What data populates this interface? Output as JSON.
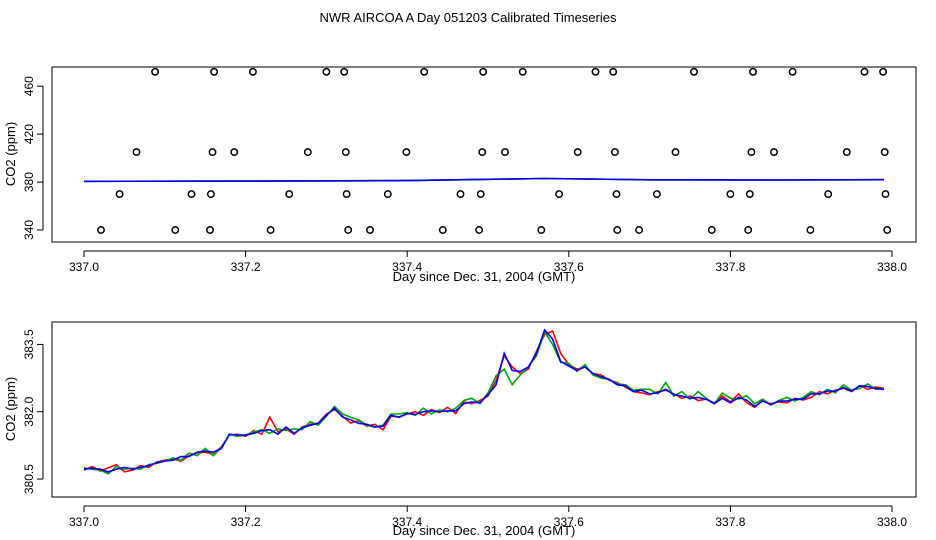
{
  "title": "NWR AIRCOA A  Day 051203  Calibrated Timeseries",
  "chart_data": [
    {
      "type": "line",
      "panel": "top",
      "xlabel": "Day since Dec. 31, 2004 (GMT)",
      "ylabel": "CO2 (ppm)",
      "xlim": [
        337.0,
        338.0
      ],
      "ylim": [
        330,
        476
      ],
      "x_ticks": [
        "337.0",
        "337.2",
        "337.4",
        "337.6",
        "337.8",
        "338.0"
      ],
      "y_ticks": [
        "340",
        "380",
        "420",
        "460"
      ],
      "series": [
        {
          "color": "#ff0000",
          "x": [
            337.0,
            337.2,
            337.4,
            337.5,
            337.57,
            337.7,
            337.85,
            337.99
          ],
          "y": [
            380.6,
            380.8,
            381.2,
            382.3,
            383.0,
            381.9,
            381.7,
            382.0
          ]
        },
        {
          "color": "#00aa00",
          "x": [
            337.0,
            337.2,
            337.4,
            337.5,
            337.57,
            337.7,
            337.85,
            337.99
          ],
          "y": [
            380.6,
            380.8,
            381.2,
            382.3,
            383.0,
            381.9,
            381.7,
            382.0
          ]
        },
        {
          "color": "#0000ff",
          "x": [
            337.0,
            337.2,
            337.4,
            337.5,
            337.57,
            337.7,
            337.85,
            337.99
          ],
          "y": [
            380.6,
            380.8,
            381.2,
            382.3,
            383.0,
            381.9,
            381.7,
            382.0
          ]
        }
      ],
      "points": [
        {
          "x": 337.021,
          "y": 340
        },
        {
          "x": 337.044,
          "y": 370
        },
        {
          "x": 337.065,
          "y": 405
        },
        {
          "x": 337.088,
          "y": 472
        },
        {
          "x": 337.113,
          "y": 340
        },
        {
          "x": 337.133,
          "y": 370
        },
        {
          "x": 337.156,
          "y": 340
        },
        {
          "x": 337.157,
          "y": 370
        },
        {
          "x": 337.159,
          "y": 405
        },
        {
          "x": 337.161,
          "y": 472
        },
        {
          "x": 337.186,
          "y": 405
        },
        {
          "x": 337.209,
          "y": 472
        },
        {
          "x": 337.231,
          "y": 340
        },
        {
          "x": 337.254,
          "y": 370
        },
        {
          "x": 337.277,
          "y": 405
        },
        {
          "x": 337.3,
          "y": 472
        },
        {
          "x": 337.322,
          "y": 472
        },
        {
          "x": 337.324,
          "y": 405
        },
        {
          "x": 337.325,
          "y": 370
        },
        {
          "x": 337.327,
          "y": 340
        },
        {
          "x": 337.354,
          "y": 340
        },
        {
          "x": 337.376,
          "y": 370
        },
        {
          "x": 337.399,
          "y": 405
        },
        {
          "x": 337.421,
          "y": 472
        },
        {
          "x": 337.444,
          "y": 340
        },
        {
          "x": 337.466,
          "y": 370
        },
        {
          "x": 337.489,
          "y": 340
        },
        {
          "x": 337.491,
          "y": 370
        },
        {
          "x": 337.493,
          "y": 405
        },
        {
          "x": 337.494,
          "y": 472
        },
        {
          "x": 337.521,
          "y": 405
        },
        {
          "x": 337.543,
          "y": 472
        },
        {
          "x": 337.566,
          "y": 340
        },
        {
          "x": 337.588,
          "y": 370
        },
        {
          "x": 337.611,
          "y": 405
        },
        {
          "x": 337.633,
          "y": 472
        },
        {
          "x": 337.655,
          "y": 472
        },
        {
          "x": 337.657,
          "y": 405
        },
        {
          "x": 337.659,
          "y": 370
        },
        {
          "x": 337.66,
          "y": 340
        },
        {
          "x": 337.687,
          "y": 340
        },
        {
          "x": 337.709,
          "y": 370
        },
        {
          "x": 337.732,
          "y": 405
        },
        {
          "x": 337.755,
          "y": 472
        },
        {
          "x": 337.777,
          "y": 340
        },
        {
          "x": 337.8,
          "y": 370
        },
        {
          "x": 337.822,
          "y": 340
        },
        {
          "x": 337.824,
          "y": 370
        },
        {
          "x": 337.826,
          "y": 405
        },
        {
          "x": 337.828,
          "y": 472
        },
        {
          "x": 337.854,
          "y": 405
        },
        {
          "x": 337.877,
          "y": 472
        },
        {
          "x": 337.899,
          "y": 340
        },
        {
          "x": 337.921,
          "y": 370
        },
        {
          "x": 337.944,
          "y": 405
        },
        {
          "x": 337.966,
          "y": 472
        },
        {
          "x": 337.989,
          "y": 472
        },
        {
          "x": 337.991,
          "y": 405
        },
        {
          "x": 337.992,
          "y": 370
        },
        {
          "x": 337.994,
          "y": 340
        }
      ]
    },
    {
      "type": "line",
      "panel": "bottom",
      "xlabel": "Day since Dec. 31, 2004 (GMT)",
      "ylabel": "CO2 (ppm)",
      "xlim": [
        337.0,
        338.0
      ],
      "ylim": [
        380.1,
        384.0
      ],
      "x_ticks": [
        "337.0",
        "337.2",
        "337.4",
        "337.6",
        "337.8",
        "338.0"
      ],
      "y_ticks": [
        "380.5",
        "382.0",
        "383.5"
      ],
      "series": [
        {
          "color": "#ff0000",
          "x": [
            337.0,
            337.01,
            337.02,
            337.03,
            337.04,
            337.05,
            337.06,
            337.07,
            337.08,
            337.09,
            337.1,
            337.11,
            337.12,
            337.13,
            337.14,
            337.15,
            337.16,
            337.17,
            337.18,
            337.19,
            337.2,
            337.21,
            337.22,
            337.23,
            337.24,
            337.25,
            337.26,
            337.27,
            337.28,
            337.29,
            337.3,
            337.31,
            337.32,
            337.33,
            337.34,
            337.35,
            337.36,
            337.37,
            337.38,
            337.39,
            337.4,
            337.41,
            337.42,
            337.43,
            337.44,
            337.45,
            337.46,
            337.47,
            337.48,
            337.49,
            337.5,
            337.51,
            337.52,
            337.53,
            337.54,
            337.55,
            337.56,
            337.57,
            337.58,
            337.59,
            337.6,
            337.61,
            337.62,
            337.63,
            337.64,
            337.65,
            337.66,
            337.67,
            337.68,
            337.69,
            337.7,
            337.71,
            337.72,
            337.73,
            337.74,
            337.75,
            337.76,
            337.77,
            337.78,
            337.79,
            337.8,
            337.81,
            337.82,
            337.83,
            337.84,
            337.85,
            337.86,
            337.87,
            337.88,
            337.89,
            337.9,
            337.91,
            337.92,
            337.93,
            337.94,
            337.95,
            337.96,
            337.97,
            337.98,
            337.99
          ],
          "y": [
            380.7,
            380.78,
            380.68,
            380.75,
            380.82,
            380.66,
            380.7,
            380.8,
            380.76,
            380.88,
            380.92,
            380.95,
            380.9,
            381.02,
            381.08,
            381.1,
            381.05,
            381.22,
            381.48,
            381.5,
            381.45,
            381.58,
            381.5,
            381.88,
            381.55,
            381.62,
            381.5,
            381.66,
            381.72,
            381.75,
            381.95,
            382.05,
            381.9,
            381.75,
            381.8,
            381.68,
            381.72,
            381.6,
            381.9,
            381.88,
            381.95,
            382.0,
            381.92,
            382.05,
            381.98,
            382.1,
            381.96,
            382.22,
            382.18,
            382.25,
            382.35,
            382.7,
            383.25,
            383.0,
            382.85,
            382.95,
            383.35,
            383.72,
            383.8,
            383.3,
            383.05,
            382.95,
            383.0,
            382.85,
            382.82,
            382.7,
            382.65,
            382.55,
            382.45,
            382.42,
            382.38,
            382.45,
            382.48,
            382.4,
            382.3,
            382.35,
            382.25,
            382.28,
            382.2,
            382.35,
            382.22,
            382.4,
            382.2,
            382.1,
            382.25,
            382.18,
            382.22,
            382.2,
            382.3,
            382.26,
            382.32,
            382.45,
            382.4,
            382.48,
            382.52,
            382.45,
            382.58,
            382.5,
            382.55,
            382.52
          ]
        },
        {
          "color": "#00aa00",
          "x": [
            337.0,
            337.01,
            337.02,
            337.03,
            337.04,
            337.05,
            337.06,
            337.07,
            337.08,
            337.09,
            337.1,
            337.11,
            337.12,
            337.13,
            337.14,
            337.15,
            337.16,
            337.17,
            337.18,
            337.19,
            337.2,
            337.21,
            337.22,
            337.23,
            337.24,
            337.25,
            337.26,
            337.27,
            337.28,
            337.29,
            337.3,
            337.31,
            337.32,
            337.33,
            337.34,
            337.35,
            337.36,
            337.37,
            337.38,
            337.39,
            337.4,
            337.41,
            337.42,
            337.43,
            337.44,
            337.45,
            337.46,
            337.47,
            337.48,
            337.49,
            337.5,
            337.51,
            337.52,
            337.53,
            337.54,
            337.55,
            337.56,
            337.57,
            337.58,
            337.59,
            337.6,
            337.61,
            337.62,
            337.63,
            337.64,
            337.65,
            337.66,
            337.67,
            337.68,
            337.69,
            337.7,
            337.71,
            337.72,
            337.73,
            337.74,
            337.75,
            337.76,
            337.77,
            337.78,
            337.79,
            337.8,
            337.81,
            337.82,
            337.83,
            337.84,
            337.85,
            337.86,
            337.87,
            337.88,
            337.89,
            337.9,
            337.91,
            337.92,
            337.93,
            337.94,
            337.95,
            337.96,
            337.97,
            337.98,
            337.99
          ],
          "y": [
            380.75,
            380.72,
            380.7,
            380.62,
            380.78,
            380.72,
            380.74,
            380.72,
            380.82,
            380.85,
            380.9,
            380.97,
            380.92,
            381.08,
            381.02,
            381.18,
            381.02,
            381.2,
            381.5,
            381.45,
            381.48,
            381.55,
            381.6,
            381.52,
            381.62,
            381.58,
            381.62,
            381.6,
            381.78,
            381.7,
            381.9,
            382.12,
            381.95,
            381.88,
            381.82,
            381.7,
            381.66,
            381.7,
            381.95,
            381.95,
            381.98,
            381.92,
            382.08,
            381.95,
            382.04,
            382.0,
            382.08,
            382.25,
            382.3,
            382.18,
            382.42,
            382.8,
            382.95,
            382.6,
            382.82,
            383.0,
            383.25,
            383.78,
            383.5,
            383.1,
            383.08,
            382.9,
            383.05,
            382.82,
            382.75,
            382.72,
            382.62,
            382.6,
            382.48,
            382.5,
            382.5,
            382.4,
            382.65,
            382.35,
            382.45,
            382.28,
            382.45,
            382.3,
            382.18,
            382.42,
            382.3,
            382.28,
            382.36,
            382.18,
            382.28,
            382.15,
            382.25,
            382.32,
            382.24,
            382.32,
            382.45,
            382.38,
            382.5,
            382.42,
            382.6,
            382.48,
            382.52,
            382.62,
            382.5,
            382.5
          ]
        },
        {
          "color": "#0000ff",
          "x": [
            337.0,
            337.01,
            337.02,
            337.03,
            337.04,
            337.05,
            337.06,
            337.07,
            337.08,
            337.09,
            337.1,
            337.11,
            337.12,
            337.13,
            337.14,
            337.15,
            337.16,
            337.17,
            337.18,
            337.19,
            337.2,
            337.21,
            337.22,
            337.23,
            337.24,
            337.25,
            337.26,
            337.27,
            337.28,
            337.29,
            337.3,
            337.31,
            337.32,
            337.33,
            337.34,
            337.35,
            337.36,
            337.37,
            337.38,
            337.39,
            337.4,
            337.41,
            337.42,
            337.43,
            337.44,
            337.45,
            337.46,
            337.47,
            337.48,
            337.49,
            337.5,
            337.51,
            337.52,
            337.53,
            337.54,
            337.55,
            337.56,
            337.57,
            337.58,
            337.59,
            337.6,
            337.61,
            337.62,
            337.63,
            337.64,
            337.65,
            337.66,
            337.67,
            337.68,
            337.69,
            337.7,
            337.71,
            337.72,
            337.73,
            337.74,
            337.75,
            337.76,
            337.77,
            337.78,
            337.79,
            337.8,
            337.81,
            337.82,
            337.83,
            337.84,
            337.85,
            337.86,
            337.87,
            337.88,
            337.89,
            337.9,
            337.91,
            337.92,
            337.93,
            337.94,
            337.95,
            337.96,
            337.97,
            337.98,
            337.99
          ],
          "y": [
            380.72,
            380.74,
            380.72,
            380.66,
            380.72,
            380.76,
            380.72,
            380.76,
            380.8,
            380.86,
            380.9,
            380.92,
            381.0,
            381.0,
            381.1,
            381.12,
            381.1,
            381.18,
            381.5,
            381.48,
            381.48,
            381.52,
            381.58,
            381.6,
            381.5,
            381.66,
            381.52,
            381.64,
            381.7,
            381.74,
            381.92,
            382.08,
            381.88,
            381.82,
            381.74,
            381.72,
            381.66,
            381.68,
            381.92,
            381.88,
            381.96,
            381.94,
            382.0,
            382.02,
            382.0,
            382.02,
            382.02,
            382.18,
            382.22,
            382.2,
            382.38,
            382.6,
            383.3,
            382.92,
            382.9,
            383.0,
            383.3,
            383.82,
            383.62,
            383.12,
            383.02,
            382.92,
            383.0,
            382.85,
            382.78,
            382.72,
            382.6,
            382.58,
            382.45,
            382.48,
            382.4,
            382.42,
            382.5,
            382.38,
            382.35,
            382.3,
            382.32,
            382.28,
            382.18,
            382.3,
            382.2,
            382.32,
            382.26,
            382.12,
            382.24,
            382.16,
            382.24,
            382.24,
            382.28,
            382.28,
            382.4,
            382.4,
            382.46,
            382.46,
            382.54,
            382.46,
            382.58,
            382.56,
            382.52,
            382.5
          ]
        }
      ]
    }
  ]
}
